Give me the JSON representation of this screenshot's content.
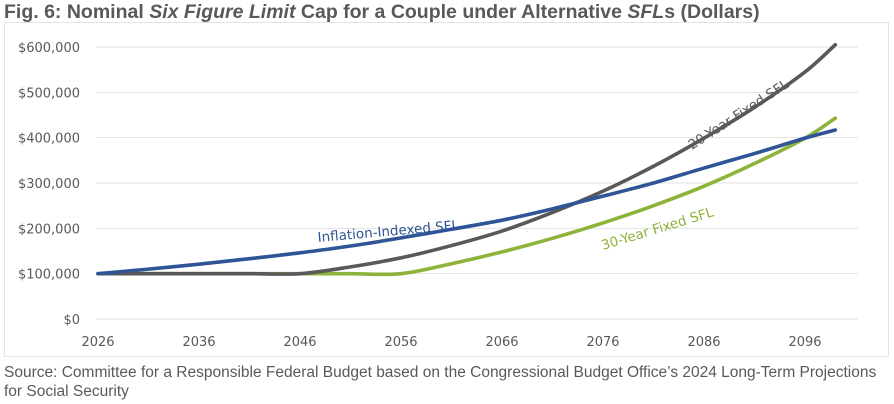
{
  "title": {
    "prefix": "Fig. 6: Nominal ",
    "italic1": "Six Figure Limit",
    "middle": " Cap for a Couple under Alternative ",
    "italic2": "SFL",
    "suffix": "s (Dollars)"
  },
  "source": "Source: Committee for a Responsible Federal Budget based on the Congressional Budget Office’s 2024 Long-Term Projections for Social Security",
  "chart_data": {
    "type": "line",
    "title": "Fig. 6: Nominal Six Figure Limit Cap for a Couple under Alternative SFLs (Dollars)",
    "xlabel": "",
    "ylabel": "",
    "xlim": [
      2026,
      2099
    ],
    "ylim": [
      0,
      600000
    ],
    "grid": true,
    "legend": "inline-labels",
    "x_ticks": [
      "2026",
      "2036",
      "2046",
      "2056",
      "2066",
      "2076",
      "2086",
      "2096"
    ],
    "y_ticks": [
      "$0",
      "$100,000",
      "$200,000",
      "$300,000",
      "$400,000",
      "$500,000",
      "$600,000"
    ],
    "y_tick_values": [
      0,
      100000,
      200000,
      300000,
      400000,
      500000,
      600000
    ],
    "x": [
      2026,
      2031,
      2036,
      2041,
      2046,
      2051,
      2056,
      2061,
      2066,
      2071,
      2076,
      2081,
      2086,
      2091,
      2096,
      2099
    ],
    "series": [
      {
        "name": "Inflation-Indexed SFL",
        "color": "#2f5597",
        "values": [
          100000,
          110000,
          121000,
          133000,
          146000,
          161000,
          179000,
          198000,
          218000,
          243000,
          271000,
          300000,
          333000,
          365000,
          399000,
          417000
        ]
      },
      {
        "name": "20-Year Fixed SFL",
        "color": "#595959",
        "values": [
          100000,
          100000,
          100000,
          100000,
          100000,
          115000,
          135000,
          162000,
          194000,
          235000,
          282000,
          337000,
          399000,
          467000,
          545000,
          605000
        ]
      },
      {
        "name": "30-Year Fixed SFL",
        "color": "#8db33a",
        "values": [
          100000,
          100000,
          100000,
          100000,
          100000,
          100000,
          100000,
          122000,
          148000,
          178000,
          212000,
          250000,
          293000,
          343000,
          399000,
          443000
        ]
      }
    ],
    "annotations": [
      {
        "text": "Inflation-Indexed SFL",
        "series": "Inflation-Indexed SFL"
      },
      {
        "text": "20-Year Fixed SFL",
        "series": "20-Year Fixed SFL"
      },
      {
        "text": "30-Year Fixed SFL",
        "series": "30-Year Fixed SFL"
      }
    ]
  }
}
